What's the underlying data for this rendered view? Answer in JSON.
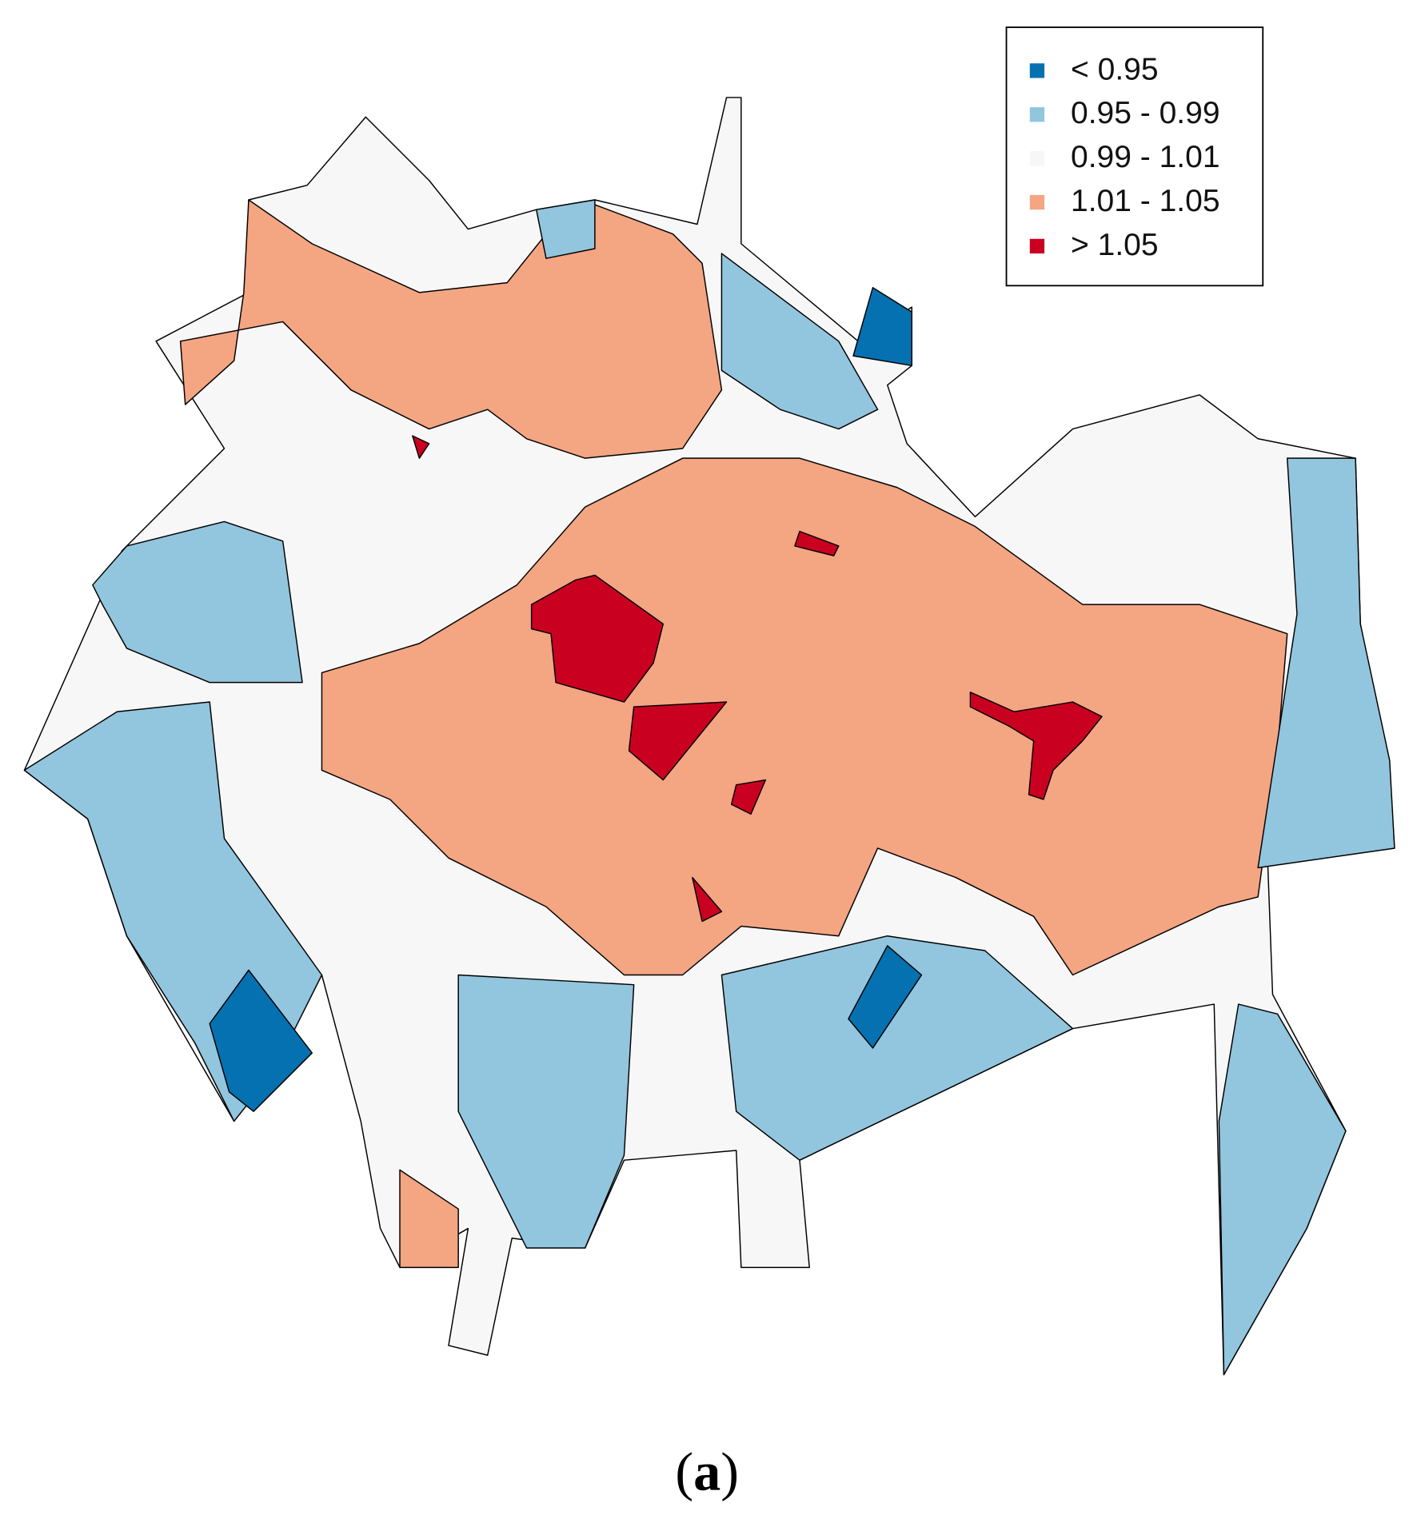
{
  "legend": {
    "items": [
      {
        "label": "< 0.95",
        "color": "#0571b0"
      },
      {
        "label": "0.95 - 0.99",
        "color": "#92c5de"
      },
      {
        "label": "0.99 - 1.01",
        "color": "#f7f7f7"
      },
      {
        "label": "1.01 - 1.05",
        "color": "#f4a582"
      },
      {
        "label": "> 1.05",
        "color": "#ca0020"
      }
    ]
  },
  "caption": {
    "open": "(",
    "letter": "a",
    "close": ")"
  }
}
